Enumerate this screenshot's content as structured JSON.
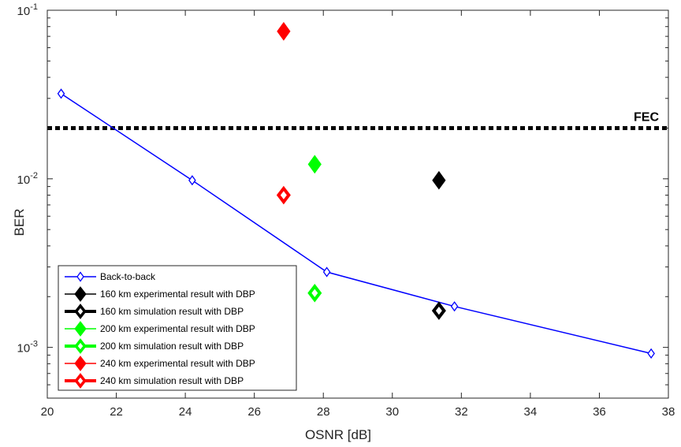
{
  "chart_data": {
    "type": "scatter",
    "title": "",
    "xlabel": "OSNR [dB]",
    "ylabel": "BER",
    "xlim": [
      20,
      38
    ],
    "ylim": [
      0.0005,
      0.1
    ],
    "yscale": "log",
    "grid": false,
    "x_ticks": [
      "20",
      "22",
      "24",
      "26",
      "28",
      "30",
      "32",
      "34",
      "36",
      "38"
    ],
    "y_ticks": [
      {
        "base": "10",
        "exp": "-3",
        "value": 0.001
      },
      {
        "base": "10",
        "exp": "-2",
        "value": 0.01
      },
      {
        "base": "10",
        "exp": "-1",
        "value": 0.1
      }
    ],
    "threshold": {
      "label": "FEC",
      "value": 0.02,
      "color": "#000000"
    },
    "legend_position": "bottom-left",
    "series": [
      {
        "name": "Back-to-back",
        "color": "#0000ff",
        "style": "line",
        "filled": false,
        "x": [
          20.4,
          24.2,
          28.1,
          31.8,
          37.5
        ],
        "y": [
          0.032,
          0.0098,
          0.0028,
          0.00175,
          0.00092
        ]
      },
      {
        "name": "160 km experimental result with DBP",
        "color": "#000000",
        "style": "marker",
        "filled": true,
        "x": [
          31.35
        ],
        "y": [
          0.0098
        ]
      },
      {
        "name": "160 km simulation result with DBP",
        "color": "#000000",
        "style": "marker",
        "filled": false,
        "x": [
          31.35
        ],
        "y": [
          0.00165
        ]
      },
      {
        "name": "200 km experimental result with DBP",
        "color": "#00ff00",
        "style": "marker",
        "filled": true,
        "x": [
          27.75
        ],
        "y": [
          0.0122
        ]
      },
      {
        "name": "200 km simulation result with DBP",
        "color": "#00ff00",
        "style": "marker",
        "filled": false,
        "x": [
          27.75
        ],
        "y": [
          0.0021
        ]
      },
      {
        "name": "240 km experimental result with DBP",
        "color": "#ff0000",
        "style": "marker",
        "filled": true,
        "x": [
          26.85
        ],
        "y": [
          0.075
        ]
      },
      {
        "name": "240 km simulation result with DBP",
        "color": "#ff0000",
        "style": "marker",
        "filled": false,
        "x": [
          26.85
        ],
        "y": [
          0.008
        ]
      }
    ]
  }
}
